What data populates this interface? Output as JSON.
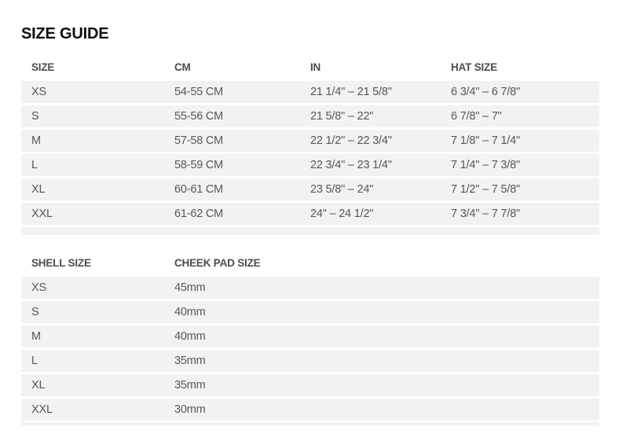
{
  "page": {
    "title": "SIZE GUIDE"
  },
  "size_table": {
    "headers": {
      "size": "SIZE",
      "cm": "CM",
      "in": "IN",
      "hat": "HAT SIZE"
    },
    "rows": [
      {
        "size": "XS",
        "cm": "54-55 CM",
        "in": "21 1/4\" – 21 5/8\"",
        "hat": "6 3/4\" – 6 7/8\""
      },
      {
        "size": "S",
        "cm": "55-56 CM",
        "in": "21 5/8\" – 22\"",
        "hat": "6 7/8\" – 7\""
      },
      {
        "size": "M",
        "cm": "57-58 CM",
        "in": "22 1/2\" – 22 3/4\"",
        "hat": "7 1/8\" – 7 1/4\""
      },
      {
        "size": "L",
        "cm": "58-59 CM",
        "in": "22 3/4\" – 23 1/4\"",
        "hat": "7 1/4\" – 7 3/8\""
      },
      {
        "size": "XL",
        "cm": "60-61 CM",
        "in": "23 5/8\" – 24\"",
        "hat": "7 1/2\" – 7 5/8\""
      },
      {
        "size": "XXL",
        "cm": "61-62 CM",
        "in": "24\" – 24 1/2\"",
        "hat": "7 3/4\" – 7 7/8\""
      }
    ]
  },
  "shell_table": {
    "headers": {
      "shell": "SHELL SIZE",
      "cheek": "CHEEK PAD SIZE"
    },
    "rows": [
      {
        "shell": "XS",
        "cheek": "45mm"
      },
      {
        "shell": "S",
        "cheek": "40mm"
      },
      {
        "shell": "M",
        "cheek": "40mm"
      },
      {
        "shell": "L",
        "cheek": "35mm"
      },
      {
        "shell": "XL",
        "cheek": "35mm"
      },
      {
        "shell": "XXL",
        "cheek": "30mm"
      }
    ]
  },
  "colors": {
    "row_background": "#f2f2f2",
    "header_text": "#4d4d4d",
    "cell_text": "#575757",
    "title_text": "#0e0e0e",
    "page_background": "#ffffff"
  }
}
